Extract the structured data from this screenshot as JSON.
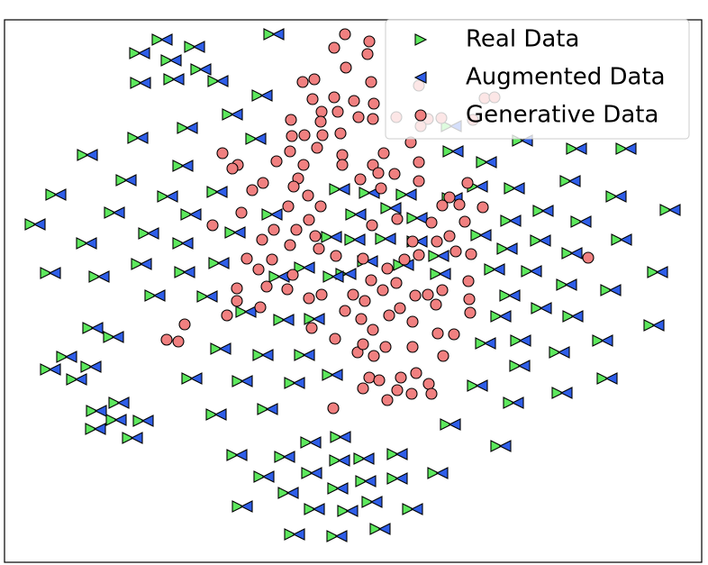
{
  "chart_data": {
    "type": "scatter",
    "xlim": [
      5,
      779
    ],
    "ylim": [
      624,
      22
    ],
    "legend": "upper right",
    "series": [
      {
        "name": "Real Data",
        "color": "#5de85d",
        "marker": "triangle-right",
        "x": [
          150,
          175,
          211,
          185,
          218,
          151,
          188,
          299,
          286,
          253,
          203,
          148,
          92,
          198,
          135,
          181,
          236,
          57,
          122,
          207,
          34,
          160,
          91,
          256,
          198,
          51,
          105,
          152,
          200,
          167,
          225,
          238,
          268,
          310,
          98,
          121,
          240,
          287,
          69,
          51,
          96,
          80,
          208,
          264,
          333,
          322,
          364,
          127,
          102,
          124,
          154,
          101,
          142,
          235,
          292,
          258,
          311,
          340,
          373,
          288,
          341,
          372,
          399,
          436,
          315,
          370,
          401,
          436,
          264,
          344,
          381,
          408,
          453,
          481,
          417,
          322,
          369,
          495,
          525,
          565,
          551,
          619,
          669,
          572,
          534,
          573,
          616,
          664,
          721,
          631,
          596,
          551,
          561,
          673,
          624,
          725,
          585,
          544,
          484,
          630,
          685,
          595,
          558,
          529,
          640,
          598,
          562,
          679,
          739,
          628,
          566,
          525,
          497,
          458,
          446,
          405,
          372,
          429,
          390,
          297,
          363,
          389,
          423,
          458,
          482,
          443,
          403,
          379,
          333,
          305,
          344,
          365,
          535,
          498,
          575,
          635,
          690,
          237,
          279,
          496
        ],
        "values": [
          59,
          44,
          52,
          67,
          77,
          92,
          88,
          38,
          106,
          127,
          142,
          153,
          172,
          184,
          200,
          218,
          213,
          216,
          236,
          238,
          249,
          259,
          270,
          258,
          270,
          303,
          307,
          293,
          302,
          328,
          329,
          292,
          346,
          355,
          364,
          374,
          387,
          394,
          396,
          410,
          407,
          421,
          420,
          423,
          394,
          425,
          416,
          447,
          456,
          466,
          467,
          476,
          486,
          460,
          454,
          505,
          507,
          491,
          485,
          529,
          525,
          511,
          509,
          504,
          547,
          542,
          534,
          531,
          562,
          565,
          567,
          557,
          565,
          525,
          587,
          593,
          595,
          471,
          428,
          447,
          495,
          436,
          420,
          406,
          381,
          378,
          391,
          378,
          361,
          351,
          342,
          351,
          328,
          322,
          316,
          302,
          301,
          299,
          304,
          281,
          266,
          267,
          276,
          261,
          246,
          234,
          245,
          218,
          233,
          201,
          209,
          207,
          220,
          242,
          216,
          214,
          210,
          231,
          238,
          238,
          263,
          266,
          265,
          268,
          284,
          294,
          290,
          304,
          297,
          307,
          354,
          307,
          180,
          168,
          156,
          165,
          165,
          90,
          154,
          140
        ]
      },
      {
        "name": "Augmented Data",
        "color": "#2f5ee8",
        "marker": "triangle-left",
        "x": [
          160,
          185,
          221,
          195,
          228,
          161,
          198,
          309,
          296,
          263,
          213,
          158,
          102,
          208,
          145,
          191,
          246,
          67,
          132,
          217,
          44,
          170,
          101,
          266,
          208,
          61,
          115,
          162,
          210,
          177,
          235,
          248,
          278,
          320,
          108,
          131,
          250,
          297,
          79,
          61,
          106,
          90,
          218,
          274,
          343,
          332,
          374,
          137,
          112,
          134,
          164,
          111,
          152,
          245,
          302,
          268,
          321,
          350,
          383,
          298,
          351,
          382,
          409,
          446,
          325,
          380,
          411,
          446,
          274,
          354,
          391,
          418,
          463,
          491,
          427,
          332,
          379,
          505,
          535,
          575,
          561,
          629,
          679,
          582,
          544,
          583,
          626,
          674,
          731,
          641,
          606,
          561,
          571,
          683,
          634,
          735,
          595,
          554,
          494,
          640,
          695,
          605,
          568,
          539,
          650,
          608,
          572,
          689,
          749,
          638,
          576,
          535,
          507,
          468,
          456,
          415,
          382,
          439,
          400,
          307,
          373,
          399,
          433,
          468,
          492,
          453,
          413,
          389,
          343,
          315,
          354,
          375,
          545,
          508,
          585,
          645,
          700,
          247,
          289,
          506
        ],
        "values": [
          59,
          44,
          52,
          67,
          77,
          92,
          88,
          38,
          106,
          127,
          142,
          153,
          172,
          184,
          200,
          218,
          213,
          216,
          236,
          238,
          249,
          259,
          270,
          258,
          270,
          303,
          307,
          293,
          302,
          328,
          329,
          292,
          346,
          355,
          364,
          374,
          387,
          394,
          396,
          410,
          407,
          421,
          420,
          423,
          394,
          425,
          416,
          447,
          456,
          466,
          467,
          476,
          486,
          460,
          454,
          505,
          507,
          491,
          485,
          529,
          525,
          511,
          509,
          504,
          547,
          542,
          534,
          531,
          562,
          565,
          567,
          557,
          565,
          525,
          587,
          593,
          595,
          471,
          428,
          447,
          495,
          436,
          420,
          406,
          381,
          378,
          391,
          378,
          361,
          351,
          342,
          351,
          328,
          322,
          316,
          302,
          301,
          299,
          304,
          281,
          266,
          267,
          276,
          261,
          246,
          234,
          245,
          218,
          233,
          201,
          209,
          207,
          220,
          242,
          216,
          214,
          210,
          231,
          238,
          238,
          263,
          266,
          265,
          268,
          284,
          294,
          290,
          304,
          297,
          307,
          354,
          307,
          180,
          168,
          156,
          165,
          165,
          90,
          154,
          140
        ]
      },
      {
        "name": "Generative Data",
        "color": "#f08080",
        "marker": "circle",
        "x": [
          383,
          410,
          371,
          408,
          384,
          412,
          336,
          349,
          371,
          393,
          347,
          415,
          357,
          375,
          398,
          323,
          356,
          414,
          378,
          338,
          358,
          324,
          440,
          456,
          247,
          264,
          258,
          307,
          322,
          352,
          380,
          380,
          426,
          414,
          337,
          331,
          280,
          292,
          326,
          342,
          400,
          420,
          438,
          465,
          465,
          423,
          499,
          519,
          491,
          510,
          536,
          268,
          236,
          320,
          356,
          343,
          329,
          304,
          291,
          322,
          350,
          413,
          441,
          458,
          479,
          499,
          516,
          523,
          506,
          485,
          465,
          449,
          430,
          412,
          392,
          403,
          373,
          354,
          274,
          287,
          302,
          325,
          343,
          357,
          319,
          263,
          296,
          252,
          263,
          289,
          346,
          372,
          383,
          401,
          405,
          425,
          440,
          461,
          475,
          491,
          520,
          484,
          444,
          432,
          414,
          458,
          486,
          504,
          521,
          522,
          397,
          415,
          428,
          458,
          403,
          410,
          403,
          421,
          430,
          441,
          445,
          462,
          457,
          476,
          492,
          479,
          370,
          205,
          185,
          198,
          653,
          538,
          549,
          475,
          490,
          525,
          465,
          467
        ],
        "values": [
          38,
          46,
          53,
          60,
          75,
          91,
          91,
          88,
          108,
          112,
          110,
          115,
          124,
          124,
          130,
          133,
          135,
          132,
          148,
          150,
          150,
          151,
          130,
          158,
          170,
          183,
          187,
          179,
          168,
          164,
          172,
          183,
          170,
          183,
          183,
          198,
          211,
          203,
          207,
          217,
          199,
          192,
          193,
          180,
          201,
          209,
          219,
          203,
          228,
          227,
          230,
          236,
          250,
          229,
          229,
          244,
          255,
          255,
          266,
          272,
          262,
          250,
          243,
          268,
          247,
          262,
          246,
          282,
          279,
          268,
          283,
          288,
          298,
          311,
          327,
          287,
          284,
          276,
          287,
          299,
          288,
          305,
          331,
          327,
          321,
          320,
          318,
          350,
          334,
          341,
          364,
          376,
          345,
          354,
          334,
          322,
          314,
          328,
          327,
          322,
          312,
          338,
          342,
          350,
          366,
          357,
          370,
          371,
          332,
          347,
          391,
          395,
          385,
          385,
          382,
          419,
          431,
          422,
          444,
          433,
          419,
          414,
          437,
          426,
          395,
          437,
          453,
          360,
          377,
          379,
          286,
          109,
          108,
          132,
          131,
          133,
          95,
          140
        ]
      }
    ]
  }
}
